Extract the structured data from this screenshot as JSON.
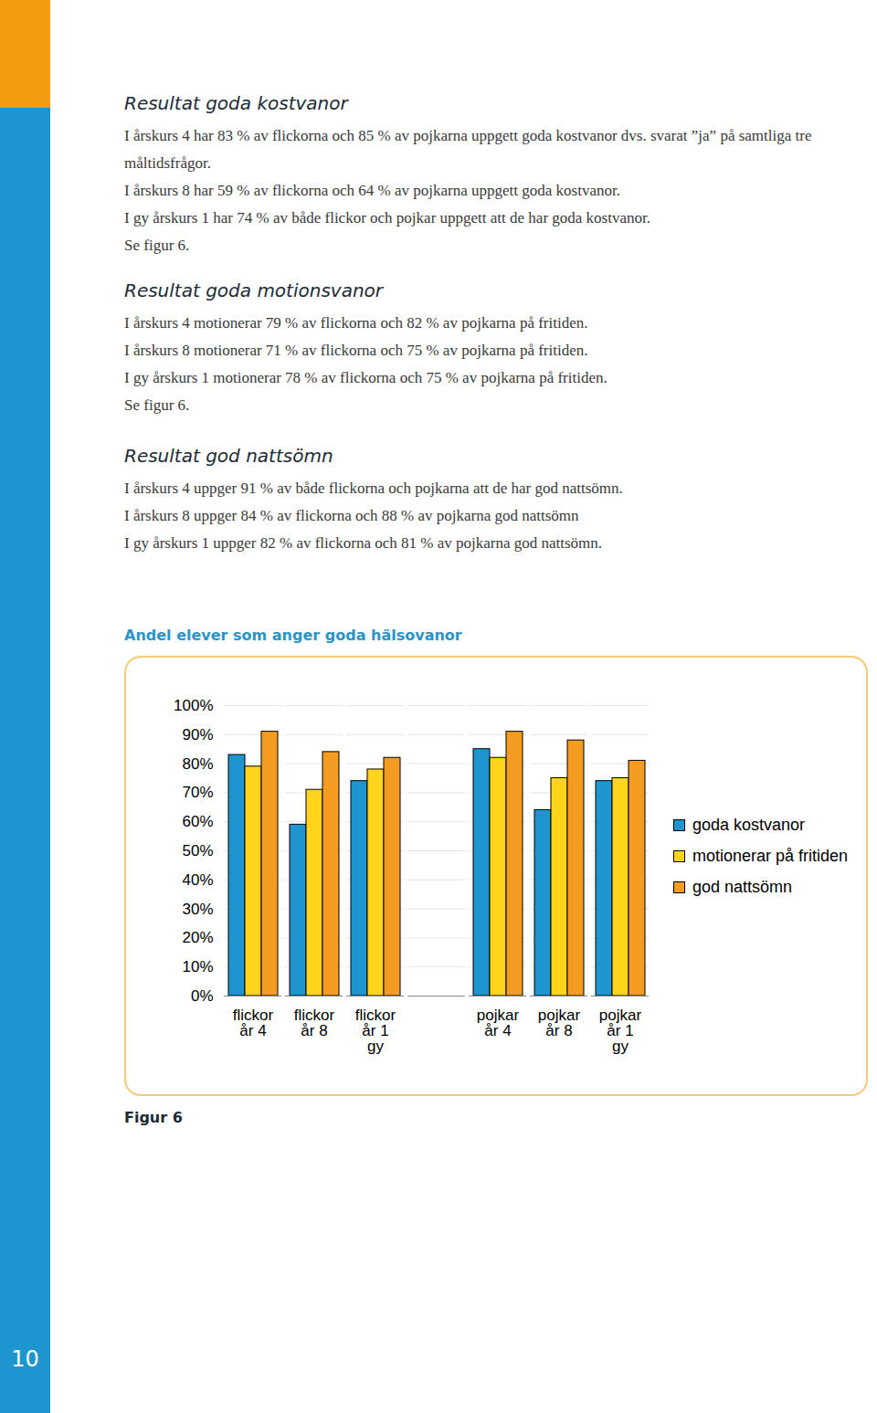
{
  "page_number": "10",
  "sections": [
    {
      "heading": "Resultat goda kostvanor",
      "paragraphs": [
        "I årskurs 4 har 83 % av flickorna och 85 % av pojkarna uppgett goda kostvanor dvs. svarat ”ja” på samtliga tre måltidsfrågor.",
        "I årskurs 8 har 59 % av flickorna och 64 % av pojkarna uppgett goda kostvanor.",
        "I gy årskurs 1 har 74 % av både flickor och pojkar uppgett att de har goda kostvanor.",
        "Se figur 6."
      ]
    },
    {
      "heading": "Resultat goda motionsvanor",
      "paragraphs": [
        "I årskurs 4 motionerar 79 % av flickorna och 82 % av pojkarna på fritiden.",
        "I årskurs 8 motionerar 71 % av flickorna och 75 % av pojkarna på fritiden.",
        "I gy årskurs 1 motionerar 78 % av flickorna och 75 % av pojkarna på fritiden.",
        "Se figur 6."
      ]
    },
    {
      "heading": "Resultat god nattsömn",
      "paragraphs": [
        "I årskurs 4 uppger 91 % av både flickorna och pojkarna att de har god nattsömn.",
        "I årskurs 8 uppger 84 % av flickorna och 88 % av pojkarna god nattsömn",
        "I gy årskurs 1 uppger 82 % av flickorna och 81 % av pojkarna god nattsömn."
      ]
    }
  ],
  "chart_title": "Andel elever som anger goda hälsovanor",
  "figure_caption": "Figur 6",
  "chart_data": {
    "type": "bar",
    "categories": [
      "flickor\når 4",
      "flickor\når 8",
      "flickor\når 1\ngy",
      null,
      "pojkar\når 4",
      "pojkar\når 8",
      "pojkar\når 1\ngy"
    ],
    "series": [
      {
        "name": "goda kostvanor",
        "color": "#1e95cf",
        "values": [
          83,
          59,
          74,
          null,
          85,
          64,
          74
        ]
      },
      {
        "name": "motionerar på fritiden",
        "color": "#ffd41a",
        "values": [
          79,
          71,
          78,
          null,
          82,
          75,
          75
        ]
      },
      {
        "name": "god nattsömn",
        "color": "#f39c1f",
        "values": [
          91,
          84,
          82,
          null,
          91,
          88,
          81
        ]
      }
    ],
    "ylim": [
      0,
      100
    ],
    "yticks": [
      {
        "value": 0,
        "label": "0%"
      },
      {
        "value": 10,
        "label": "10%"
      },
      {
        "value": 20,
        "label": "20%"
      },
      {
        "value": 30,
        "label": "30%"
      },
      {
        "value": 40,
        "label": "40%"
      },
      {
        "value": 50,
        "label": "50%"
      },
      {
        "value": 60,
        "label": "60%"
      },
      {
        "value": 70,
        "label": "70%"
      },
      {
        "value": 80,
        "label": "80%"
      },
      {
        "value": 90,
        "label": "90%"
      },
      {
        "value": 100,
        "label": "100%"
      }
    ],
    "grid": true,
    "legend": "right"
  }
}
